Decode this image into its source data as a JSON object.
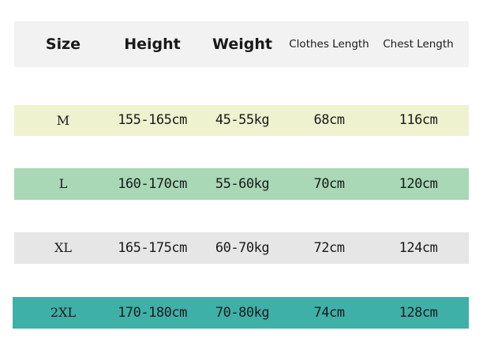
{
  "header": [
    "Size",
    "Height",
    "Weight",
    "Clothes Length",
    "Chest Length"
  ],
  "rows": [
    {
      "cells": [
        "M",
        "155-165cm",
        "45-55kg",
        "68cm",
        "116cm"
      ],
      "color": "#eef2cf"
    },
    {
      "cells": [
        "L",
        "160-170cm",
        "55-60kg",
        "70cm",
        "120cm"
      ],
      "color": "#a8d8b5"
    },
    {
      "cells": [
        "XL",
        "165-175cm",
        "60-70kg",
        "72cm",
        "124cm"
      ],
      "color": "#e6e6e6"
    },
    {
      "cells": [
        "2XL",
        "170-180cm",
        "70-80kg",
        "74cm",
        "128cm"
      ],
      "color": "#3fb0a8"
    }
  ],
  "header_color": "#f2f2f2"
}
